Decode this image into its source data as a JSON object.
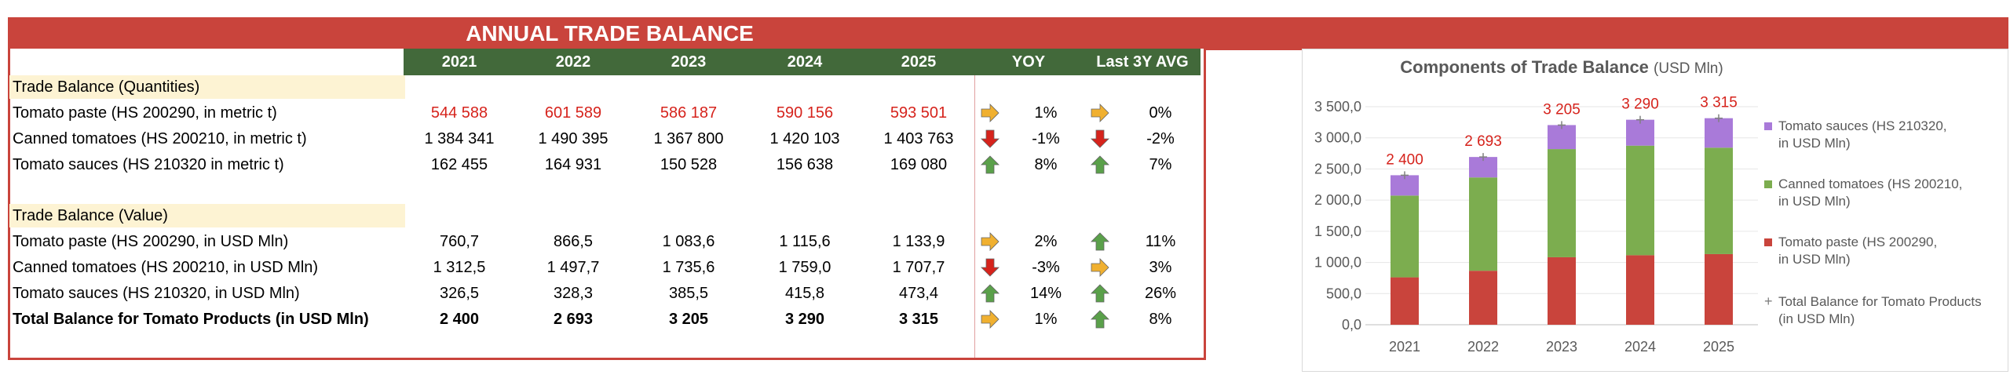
{
  "title": "ANNUAL TRADE BALANCE",
  "columns": [
    "2021",
    "2022",
    "2023",
    "2024",
    "2025"
  ],
  "yoy_header": "YOY",
  "avg_header": "Last 3Y AVG",
  "sections": [
    {
      "label": "Trade Balance (Quantities)",
      "rows": [
        {
          "label": "Tomato paste (HS 200290, in metric t)",
          "values": [
            "544 588",
            "601 589",
            "586 187",
            "590 156",
            "593 501"
          ],
          "red": true,
          "yoy": "1%",
          "yoy_dir": "flat",
          "avg": "0%",
          "avg_dir": "flat"
        },
        {
          "label": "Canned tomatoes (HS 200210, in metric t)",
          "values": [
            "1 384 341",
            "1 490 395",
            "1 367 800",
            "1 420 103",
            "1 403 763"
          ],
          "red": false,
          "yoy": "-1%",
          "yoy_dir": "down",
          "avg": "-2%",
          "avg_dir": "down"
        },
        {
          "label": "Tomato sauces (HS 210320 in metric t)",
          "values": [
            "162 455",
            "164 931",
            "150 528",
            "156 638",
            "169 080"
          ],
          "red": false,
          "yoy": "8%",
          "yoy_dir": "up",
          "avg": "7%",
          "avg_dir": "up"
        }
      ]
    },
    {
      "label": "Trade Balance (Value)",
      "rows": [
        {
          "label": "Tomato paste (HS 200290, in USD Mln)",
          "values": [
            "760,7",
            "866,5",
            "1 083,6",
            "1 115,6",
            "1 133,9"
          ],
          "red": false,
          "yoy": "2%",
          "yoy_dir": "flat",
          "avg": "11%",
          "avg_dir": "up"
        },
        {
          "label": "Canned tomatoes (HS 200210, in USD Mln)",
          "values": [
            "1 312,5",
            "1 497,7",
            "1 735,6",
            "1 759,0",
            "1 707,7"
          ],
          "red": false,
          "yoy": "-3%",
          "yoy_dir": "down",
          "avg": "3%",
          "avg_dir": "flat"
        },
        {
          "label": "Tomato sauces (HS 210320, in USD Mln)",
          "values": [
            "326,5",
            "328,3",
            "385,5",
            "415,8",
            "473,4"
          ],
          "red": false,
          "yoy": "14%",
          "yoy_dir": "up",
          "avg": "26%",
          "avg_dir": "up"
        },
        {
          "label": "Total Balance for Tomato Products (in USD Mln)",
          "values": [
            "2 400",
            "2 693",
            "3 205",
            "3 290",
            "3 315"
          ],
          "red": false,
          "bold": true,
          "yoy": "1%",
          "yoy_dir": "flat",
          "avg": "8%",
          "avg_dir": "up"
        }
      ]
    }
  ],
  "colors": {
    "accent": "#c9443c",
    "header_green": "#42693a",
    "paste": "#c9443c",
    "canned": "#7cad4f",
    "sauces": "#a97ad9",
    "up": "#5aa04a",
    "down": "#d6231c",
    "flat": "#f0b030"
  },
  "chart_data": {
    "type": "bar",
    "stacked": true,
    "title": "Components of Trade Balance",
    "title_unit": "(USD Mln)",
    "categories": [
      "2021",
      "2022",
      "2023",
      "2024",
      "2025"
    ],
    "series": [
      {
        "name": "Tomato paste (HS 200290, in USD Mln)",
        "values": [
          760.7,
          866.5,
          1083.6,
          1115.6,
          1133.9
        ]
      },
      {
        "name": "Canned tomatoes (HS 200210, in USD Mln)",
        "values": [
          1312.5,
          1497.7,
          1735.6,
          1759.0,
          1707.7
        ]
      },
      {
        "name": "Tomato sauces (HS 210320, in USD Mln)",
        "values": [
          326.5,
          328.3,
          385.5,
          415.8,
          473.4
        ]
      }
    ],
    "total": {
      "name": "Total Balance for Tomato Products (in USD Mln)",
      "values": [
        2400,
        2693,
        3205,
        3290,
        3315
      ],
      "labels": [
        "2 400",
        "2 693",
        "3 205",
        "3 290",
        "3 315"
      ]
    },
    "ylim": [
      0,
      3500
    ],
    "yticks": [
      "0,0",
      "500,0",
      "1 000,0",
      "1 500,0",
      "2 000,0",
      "2 500,0",
      "3 000,0",
      "3 500,0"
    ],
    "legend": [
      {
        "text": "Tomato sauces (HS 210320, in USD Mln)",
        "series": 2
      },
      {
        "text": "Canned tomatoes (HS 200210, in USD Mln)",
        "series": 1
      },
      {
        "text": "Tomato paste (HS 200290, in USD Mln)",
        "series": 0
      },
      {
        "text": "Total Balance for Tomato Products (in USD Mln)",
        "series": "total"
      }
    ]
  }
}
